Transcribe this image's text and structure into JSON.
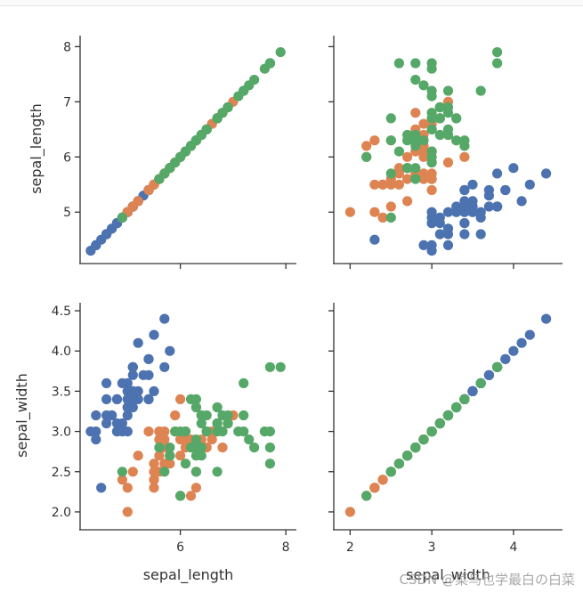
{
  "chart_data": {
    "type": "scatter",
    "kind": "pairplot",
    "variables": [
      "sepal_length",
      "sepal_width"
    ],
    "colors": [
      "#4c72b0",
      "#dd8452",
      "#55a868"
    ],
    "watermark": "CSDN @菜鸟也学最白の白菜",
    "grid": false,
    "ranges": {
      "sepal_length": [
        4.1,
        8.2
      ],
      "sepal_width": [
        1.8,
        4.6
      ]
    },
    "ticks": {
      "sepal_length": [
        6,
        8
      ],
      "sepal_length_y": [
        5,
        6,
        7,
        8
      ],
      "sepal_width": [
        2,
        3,
        4
      ],
      "sepal_width_y": [
        2.0,
        2.5,
        3.0,
        3.5,
        4.0,
        4.5
      ]
    },
    "tick_labels": {
      "sepal_length_x": [
        "6",
        "8"
      ],
      "sepal_length_y": [
        "5",
        "6",
        "7",
        "8"
      ],
      "sepal_width_x": [
        "2",
        "3",
        "4"
      ],
      "sepal_width_y": [
        "2.0",
        "2.5",
        "3.0",
        "3.5",
        "4.0",
        "4.5"
      ]
    },
    "series": [
      {
        "color": "#4c72b0",
        "points": [
          [
            4.3,
            3.0
          ],
          [
            4.4,
            2.9
          ],
          [
            4.4,
            3.0
          ],
          [
            4.4,
            3.2
          ],
          [
            4.5,
            2.3
          ],
          [
            4.6,
            3.1
          ],
          [
            4.6,
            3.4
          ],
          [
            4.6,
            3.6
          ],
          [
            4.6,
            3.2
          ],
          [
            4.7,
            3.2
          ],
          [
            4.7,
            3.2
          ],
          [
            4.8,
            3.4
          ],
          [
            4.8,
            3.0
          ],
          [
            4.8,
            3.4
          ],
          [
            4.8,
            3.1
          ],
          [
            4.8,
            3.0
          ],
          [
            4.9,
            3.0
          ],
          [
            4.9,
            3.1
          ],
          [
            4.9,
            3.6
          ],
          [
            5.0,
            3.6
          ],
          [
            5.0,
            3.4
          ],
          [
            5.0,
            3.0
          ],
          [
            5.0,
            3.4
          ],
          [
            5.0,
            3.2
          ],
          [
            5.0,
            3.5
          ],
          [
            5.0,
            3.5
          ],
          [
            5.0,
            3.3
          ],
          [
            5.0,
            3.3
          ],
          [
            5.1,
            3.5
          ],
          [
            5.1,
            3.5
          ],
          [
            5.1,
            3.8
          ],
          [
            5.1,
            3.8
          ],
          [
            5.1,
            3.7
          ],
          [
            5.1,
            3.3
          ],
          [
            5.1,
            3.4
          ],
          [
            5.1,
            3.8
          ],
          [
            5.2,
            3.5
          ],
          [
            5.2,
            3.4
          ],
          [
            5.2,
            4.1
          ],
          [
            5.3,
            3.7
          ],
          [
            5.4,
            3.9
          ],
          [
            5.4,
            3.7
          ],
          [
            5.4,
            3.9
          ],
          [
            5.4,
            3.4
          ],
          [
            5.4,
            3.4
          ],
          [
            5.5,
            4.2
          ],
          [
            5.5,
            3.5
          ],
          [
            5.7,
            4.4
          ],
          [
            5.7,
            3.8
          ],
          [
            5.8,
            4.0
          ]
        ]
      },
      {
        "color": "#dd8452",
        "points": [
          [
            4.9,
            2.4
          ],
          [
            5.0,
            2.0
          ],
          [
            5.0,
            2.3
          ],
          [
            5.1,
            2.5
          ],
          [
            5.2,
            2.7
          ],
          [
            5.4,
            3.0
          ],
          [
            5.5,
            2.3
          ],
          [
            5.5,
            2.4
          ],
          [
            5.5,
            2.4
          ],
          [
            5.5,
            2.5
          ],
          [
            5.5,
            2.6
          ],
          [
            5.6,
            2.9
          ],
          [
            5.6,
            3.0
          ],
          [
            5.6,
            2.5
          ],
          [
            5.6,
            3.0
          ],
          [
            5.6,
            2.7
          ],
          [
            5.7,
            2.8
          ],
          [
            5.7,
            2.6
          ],
          [
            5.7,
            3.0
          ],
          [
            5.7,
            2.9
          ],
          [
            5.7,
            2.8
          ],
          [
            5.8,
            2.7
          ],
          [
            5.8,
            2.7
          ],
          [
            5.8,
            2.6
          ],
          [
            5.9,
            3.0
          ],
          [
            5.9,
            3.2
          ],
          [
            6.0,
            2.2
          ],
          [
            6.0,
            2.9
          ],
          [
            6.0,
            2.7
          ],
          [
            6.0,
            3.4
          ],
          [
            6.1,
            2.9
          ],
          [
            6.1,
            2.8
          ],
          [
            6.1,
            2.8
          ],
          [
            6.1,
            3.0
          ],
          [
            6.2,
            2.2
          ],
          [
            6.2,
            2.9
          ],
          [
            6.3,
            3.3
          ],
          [
            6.3,
            2.5
          ],
          [
            6.3,
            2.3
          ],
          [
            6.4,
            3.2
          ],
          [
            6.4,
            2.9
          ],
          [
            6.5,
            2.8
          ],
          [
            6.6,
            2.9
          ],
          [
            6.6,
            3.0
          ],
          [
            6.7,
            3.1
          ],
          [
            6.7,
            3.0
          ],
          [
            6.7,
            3.1
          ],
          [
            6.8,
            2.8
          ],
          [
            6.9,
            3.1
          ],
          [
            7.0,
            3.2
          ]
        ]
      },
      {
        "color": "#55a868",
        "points": [
          [
            4.9,
            2.5
          ],
          [
            5.6,
            2.8
          ],
          [
            5.7,
            2.5
          ],
          [
            5.8,
            2.7
          ],
          [
            5.8,
            2.8
          ],
          [
            5.8,
            2.7
          ],
          [
            5.9,
            3.0
          ],
          [
            6.0,
            2.2
          ],
          [
            6.0,
            3.0
          ],
          [
            6.1,
            3.0
          ],
          [
            6.1,
            2.6
          ],
          [
            6.2,
            2.8
          ],
          [
            6.2,
            3.4
          ],
          [
            6.3,
            3.3
          ],
          [
            6.3,
            2.9
          ],
          [
            6.3,
            2.7
          ],
          [
            6.3,
            2.8
          ],
          [
            6.3,
            3.4
          ],
          [
            6.3,
            2.5
          ],
          [
            6.4,
            2.7
          ],
          [
            6.4,
            3.2
          ],
          [
            6.4,
            2.8
          ],
          [
            6.4,
            2.8
          ],
          [
            6.4,
            3.1
          ],
          [
            6.5,
            3.0
          ],
          [
            6.5,
            3.2
          ],
          [
            6.5,
            3.0
          ],
          [
            6.5,
            3.0
          ],
          [
            6.7,
            2.5
          ],
          [
            6.7,
            3.3
          ],
          [
            6.7,
            3.1
          ],
          [
            6.7,
            3.3
          ],
          [
            6.7,
            3.0
          ],
          [
            6.8,
            3.0
          ],
          [
            6.8,
            3.2
          ],
          [
            6.9,
            3.2
          ],
          [
            6.9,
            3.1
          ],
          [
            6.9,
            3.1
          ],
          [
            7.1,
            3.0
          ],
          [
            7.2,
            3.6
          ],
          [
            7.2,
            3.2
          ],
          [
            7.2,
            3.0
          ],
          [
            7.3,
            2.9
          ],
          [
            7.4,
            2.8
          ],
          [
            7.6,
            3.0
          ],
          [
            7.7,
            3.8
          ],
          [
            7.7,
            2.6
          ],
          [
            7.7,
            2.8
          ],
          [
            7.7,
            3.0
          ],
          [
            7.9,
            3.8
          ]
        ]
      }
    ]
  }
}
